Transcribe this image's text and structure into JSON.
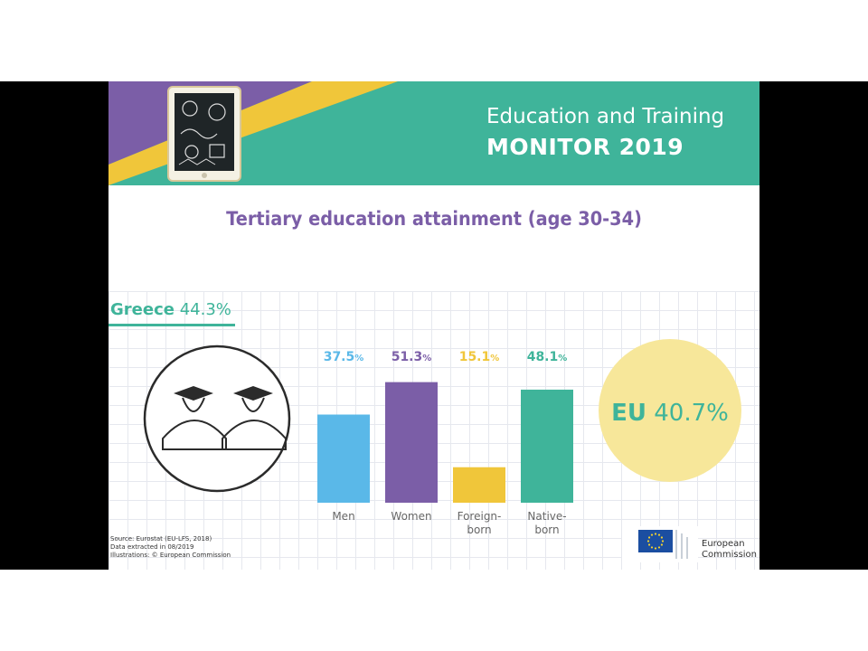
{
  "banner": {
    "line1": "Education and Training",
    "line2": "MONITOR 2019"
  },
  "country": {
    "name": "Greece",
    "value": "44.3%"
  },
  "eu": {
    "name": "EU",
    "value": "40.7%"
  },
  "source": {
    "line1": "Source: Eurostat (EU-LFS, 2018)",
    "line2": "Data extracted in 08/2019",
    "line3": "Illustrations: © European Commission"
  },
  "logo": {
    "line1": "European",
    "line2": "Commission"
  },
  "colors": {
    "teal": "#3fb49a",
    "purple": "#7b5ea7",
    "yellow": "#f0c63a",
    "blue": "#5ab8e8",
    "eu_circle": "#f7e79a"
  },
  "chart_data": {
    "type": "bar",
    "title": "Tertiary education attainment (age 30-34)",
    "categories": [
      "Men",
      "Women",
      "Foreign-born",
      "Native-born"
    ],
    "category_lines": [
      [
        "Men"
      ],
      [
        "Women"
      ],
      [
        "Foreign-",
        "born"
      ],
      [
        "Native-",
        "born"
      ]
    ],
    "values": [
      37.5,
      51.3,
      15.1,
      48.1
    ],
    "value_labels": [
      "37.5",
      "51.3",
      "15.1",
      "48.1"
    ],
    "unit": "%",
    "bar_colors": [
      "#5ab8e8",
      "#7b5ea7",
      "#f0c63a",
      "#3fb49a"
    ],
    "ylim": [
      0,
      60
    ],
    "grid": true,
    "legend": "none"
  }
}
